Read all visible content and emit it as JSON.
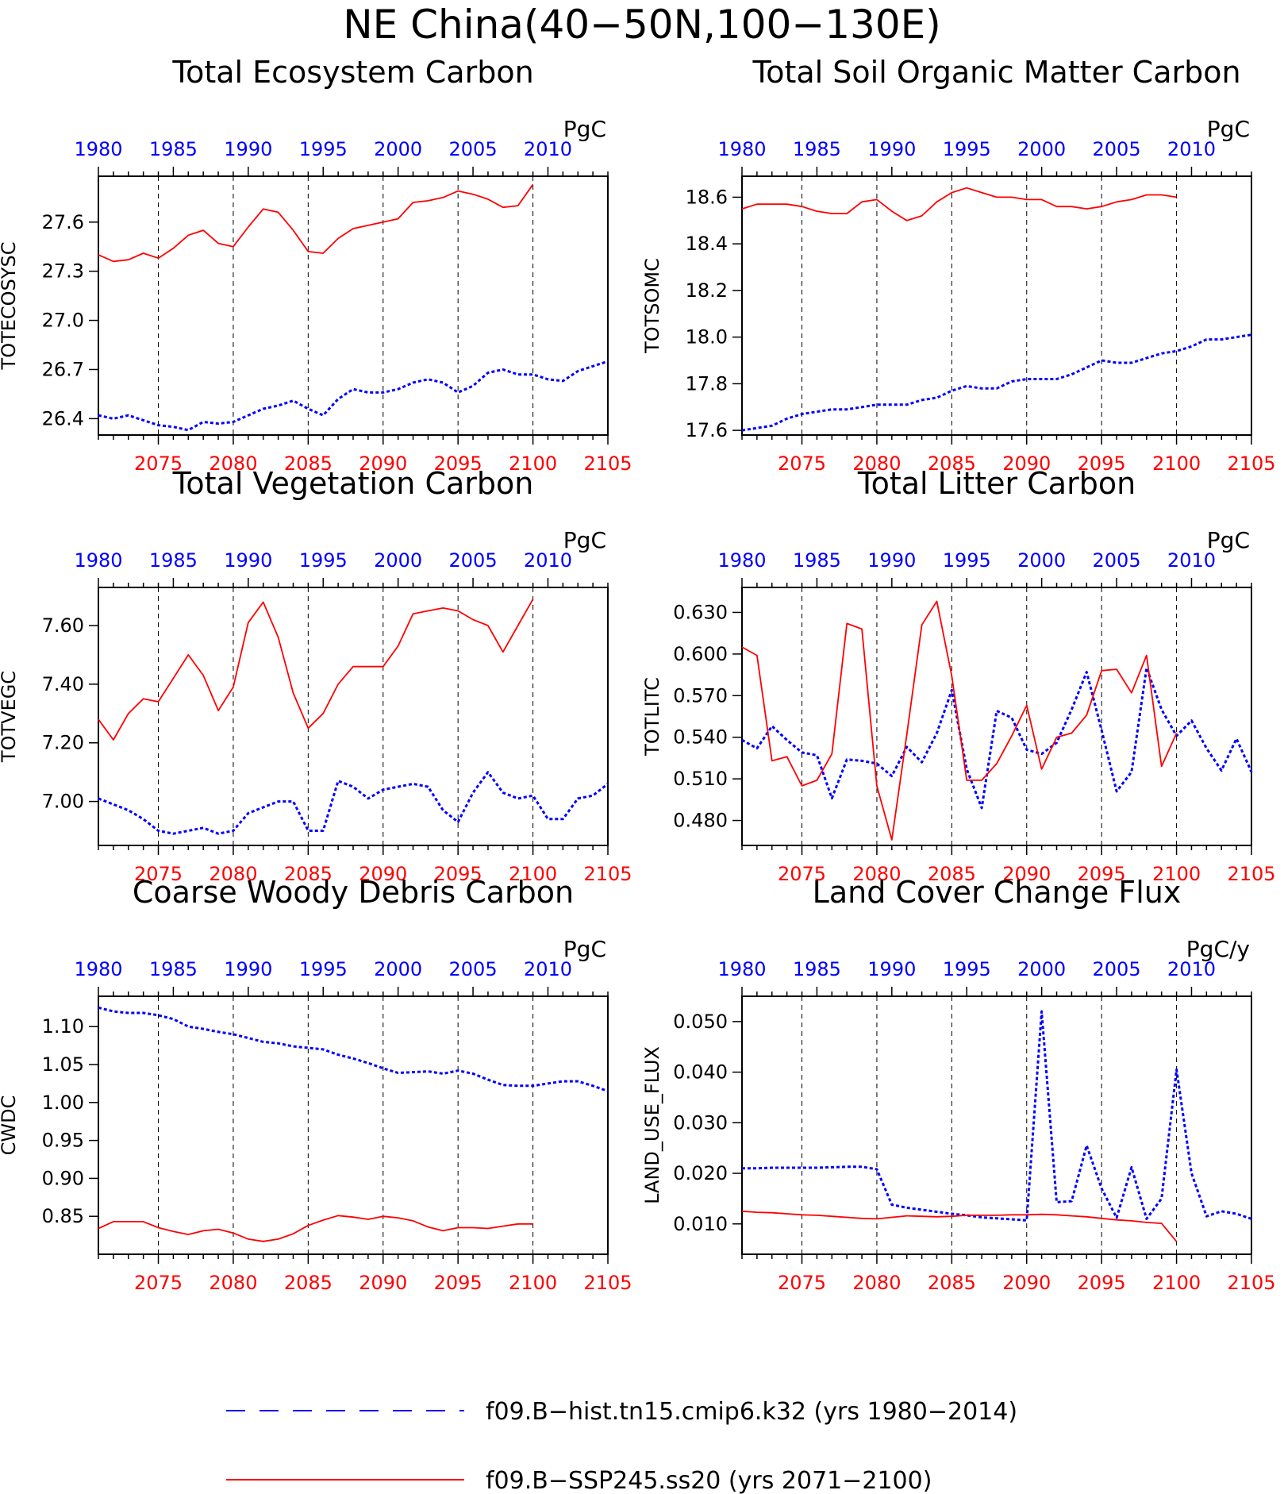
{
  "title": "NE China(40−50N,100−130E)",
  "colors": {
    "hist": "#0000ff",
    "ssp": "#ff0000",
    "axis": "#000000",
    "gridline": "#000000"
  },
  "legend": {
    "entries": [
      {
        "series": "hist",
        "label": "f09.B−hist.tn15.cmip6.k32 (yrs 1980−2014)",
        "style": "dashed"
      },
      {
        "series": "ssp",
        "label": "f09.B−SSP245.ss20 (yrs 2071−2100)",
        "style": "solid"
      }
    ]
  },
  "chart_data": [
    {
      "type": "line",
      "title": "Total Ecosystem Carbon",
      "ylabel": "TOTECOSYSC",
      "units": "PgC",
      "ylim": [
        26.3,
        27.88
      ],
      "yticks": [
        26.4,
        26.7,
        27.0,
        27.3,
        27.6
      ],
      "ytick_labels": [
        "26.4",
        "26.7",
        "27.0",
        "27.3",
        "27.6"
      ],
      "x_bottom": {
        "range": [
          2071,
          2105
        ],
        "ticks": [
          2075,
          2080,
          2085,
          2090,
          2095,
          2100,
          2105
        ]
      },
      "x_top": {
        "range": [
          1980,
          2014
        ],
        "ticks": [
          1980,
          1985,
          1990,
          1995,
          2000,
          2005,
          2010
        ]
      },
      "series": [
        {
          "id": "hist",
          "axis": "top",
          "x_start": 1980,
          "values": [
            26.42,
            26.4,
            26.42,
            26.39,
            26.36,
            26.35,
            26.33,
            26.38,
            26.37,
            26.38,
            26.42,
            26.46,
            26.48,
            26.51,
            26.46,
            26.42,
            26.52,
            26.58,
            26.56,
            26.56,
            26.58,
            26.62,
            26.64,
            26.62,
            26.56,
            26.6,
            26.68,
            26.7,
            26.67,
            26.67,
            26.64,
            26.63,
            26.69,
            26.72,
            26.75
          ]
        },
        {
          "id": "ssp",
          "axis": "bottom",
          "x_start": 2071,
          "values": [
            27.4,
            27.36,
            27.37,
            27.41,
            27.38,
            27.44,
            27.52,
            27.55,
            27.47,
            27.45,
            27.57,
            27.68,
            27.66,
            27.55,
            27.42,
            27.41,
            27.5,
            27.56,
            27.58,
            27.6,
            27.62,
            27.72,
            27.73,
            27.75,
            27.79,
            27.77,
            27.74,
            27.69,
            27.7,
            27.83
          ]
        }
      ]
    },
    {
      "type": "line",
      "title": "Total Soil Organic Matter Carbon",
      "ylabel": "TOTSOMC",
      "units": "PgC",
      "ylim": [
        17.58,
        18.69
      ],
      "yticks": [
        17.6,
        17.8,
        18.0,
        18.2,
        18.4,
        18.6
      ],
      "ytick_labels": [
        "17.6",
        "17.8",
        "18.0",
        "18.2",
        "18.4",
        "18.6"
      ],
      "x_bottom": {
        "range": [
          2071,
          2105
        ],
        "ticks": [
          2075,
          2080,
          2085,
          2090,
          2095,
          2100,
          2105
        ]
      },
      "x_top": {
        "range": [
          1980,
          2014
        ],
        "ticks": [
          1980,
          1985,
          1990,
          1995,
          2000,
          2005,
          2010
        ]
      },
      "series": [
        {
          "id": "hist",
          "axis": "top",
          "x_start": 1980,
          "values": [
            17.6,
            17.61,
            17.62,
            17.65,
            17.67,
            17.68,
            17.69,
            17.69,
            17.7,
            17.71,
            17.71,
            17.71,
            17.73,
            17.74,
            17.77,
            17.79,
            17.78,
            17.78,
            17.81,
            17.82,
            17.82,
            17.82,
            17.84,
            17.87,
            17.9,
            17.89,
            17.89,
            17.91,
            17.93,
            17.94,
            17.96,
            17.99,
            17.99,
            18.0,
            18.01
          ]
        },
        {
          "id": "ssp",
          "axis": "bottom",
          "x_start": 2071,
          "values": [
            18.55,
            18.57,
            18.57,
            18.57,
            18.56,
            18.54,
            18.53,
            18.53,
            18.58,
            18.59,
            18.54,
            18.5,
            18.52,
            18.58,
            18.62,
            18.64,
            18.62,
            18.6,
            18.6,
            18.59,
            18.59,
            18.56,
            18.56,
            18.55,
            18.56,
            18.58,
            18.59,
            18.61,
            18.61,
            18.6
          ]
        }
      ]
    },
    {
      "type": "line",
      "title": "Total Vegetation Carbon",
      "ylabel": "TOTVEGC",
      "units": "PgC",
      "ylim": [
        6.85,
        7.73
      ],
      "yticks": [
        7.0,
        7.2,
        7.4,
        7.6
      ],
      "ytick_labels": [
        "7.00",
        "7.20",
        "7.40",
        "7.60"
      ],
      "x_bottom": {
        "range": [
          2071,
          2105
        ],
        "ticks": [
          2075,
          2080,
          2085,
          2090,
          2095,
          2100,
          2105
        ]
      },
      "x_top": {
        "range": [
          1980,
          2014
        ],
        "ticks": [
          1980,
          1985,
          1990,
          1995,
          2000,
          2005,
          2010
        ]
      },
      "series": [
        {
          "id": "hist",
          "axis": "top",
          "x_start": 1980,
          "values": [
            7.01,
            6.99,
            6.97,
            6.94,
            6.9,
            6.89,
            6.9,
            6.91,
            6.89,
            6.9,
            6.96,
            6.98,
            7.0,
            7.0,
            6.9,
            6.9,
            7.07,
            7.05,
            7.01,
            7.04,
            7.05,
            7.06,
            7.05,
            6.97,
            6.93,
            7.03,
            7.1,
            7.03,
            7.01,
            7.02,
            6.94,
            6.94,
            7.01,
            7.02,
            7.06
          ]
        },
        {
          "id": "ssp",
          "axis": "bottom",
          "x_start": 2071,
          "values": [
            7.28,
            7.21,
            7.3,
            7.35,
            7.34,
            7.42,
            7.5,
            7.43,
            7.31,
            7.39,
            7.61,
            7.68,
            7.56,
            7.37,
            7.25,
            7.3,
            7.4,
            7.46,
            7.46,
            7.46,
            7.53,
            7.64,
            7.65,
            7.66,
            7.65,
            7.62,
            7.6,
            7.51,
            7.6,
            7.69
          ]
        }
      ]
    },
    {
      "type": "line",
      "title": "Total Litter Carbon",
      "ylabel": "TOTLITC",
      "units": "PgC",
      "ylim": [
        0.462,
        0.648
      ],
      "yticks": [
        0.48,
        0.51,
        0.54,
        0.57,
        0.6,
        0.63
      ],
      "ytick_labels": [
        "0.480",
        "0.510",
        "0.540",
        "0.570",
        "0.600",
        "0.630"
      ],
      "x_bottom": {
        "range": [
          2071,
          2105
        ],
        "ticks": [
          2075,
          2080,
          2085,
          2090,
          2095,
          2100,
          2105
        ]
      },
      "x_top": {
        "range": [
          1980,
          2014
        ],
        "ticks": [
          1980,
          1985,
          1990,
          1995,
          2000,
          2005,
          2010
        ]
      },
      "series": [
        {
          "id": "hist",
          "axis": "top",
          "x_start": 1980,
          "values": [
            0.538,
            0.532,
            0.548,
            0.538,
            0.529,
            0.527,
            0.496,
            0.524,
            0.523,
            0.521,
            0.512,
            0.533,
            0.522,
            0.543,
            0.574,
            0.517,
            0.489,
            0.559,
            0.554,
            0.531,
            0.528,
            0.536,
            0.56,
            0.587,
            0.545,
            0.501,
            0.515,
            0.59,
            0.56,
            0.541,
            0.552,
            0.532,
            0.516,
            0.539,
            0.515
          ]
        },
        {
          "id": "ssp",
          "axis": "bottom",
          "x_start": 2071,
          "values": [
            0.605,
            0.599,
            0.523,
            0.526,
            0.505,
            0.509,
            0.528,
            0.622,
            0.618,
            0.505,
            0.466,
            0.542,
            0.621,
            0.638,
            0.584,
            0.509,
            0.509,
            0.521,
            0.541,
            0.563,
            0.517,
            0.54,
            0.543,
            0.556,
            0.588,
            0.589,
            0.572,
            0.599,
            0.519,
            0.543
          ]
        }
      ]
    },
    {
      "type": "line",
      "title": "Coarse Woody Debris Carbon",
      "ylabel": "CWDC",
      "units": "PgC",
      "ylim": [
        0.8,
        1.14
      ],
      "yticks": [
        0.85,
        0.9,
        0.95,
        1.0,
        1.05,
        1.1
      ],
      "ytick_labels": [
        "0.85",
        "0.90",
        "0.95",
        "1.00",
        "1.05",
        "1.10"
      ],
      "x_bottom": {
        "range": [
          2071,
          2105
        ],
        "ticks": [
          2075,
          2080,
          2085,
          2090,
          2095,
          2100,
          2105
        ]
      },
      "x_top": {
        "range": [
          1980,
          2014
        ],
        "ticks": [
          1980,
          1985,
          1990,
          1995,
          2000,
          2005,
          2010
        ]
      },
      "series": [
        {
          "id": "hist",
          "axis": "top",
          "x_start": 1980,
          "values": [
            1.125,
            1.12,
            1.118,
            1.118,
            1.115,
            1.11,
            1.1,
            1.097,
            1.093,
            1.09,
            1.085,
            1.08,
            1.078,
            1.074,
            1.072,
            1.07,
            1.063,
            1.058,
            1.052,
            1.045,
            1.039,
            1.04,
            1.041,
            1.038,
            1.042,
            1.038,
            1.03,
            1.023,
            1.022,
            1.022,
            1.025,
            1.028,
            1.028,
            1.022,
            1.015
          ]
        },
        {
          "id": "ssp",
          "axis": "bottom",
          "x_start": 2071,
          "values": [
            0.834,
            0.843,
            0.843,
            0.843,
            0.835,
            0.83,
            0.826,
            0.831,
            0.833,
            0.828,
            0.82,
            0.817,
            0.82,
            0.827,
            0.838,
            0.845,
            0.851,
            0.849,
            0.846,
            0.85,
            0.848,
            0.844,
            0.836,
            0.831,
            0.835,
            0.835,
            0.834,
            0.837,
            0.84,
            0.84
          ]
        }
      ]
    },
    {
      "type": "line",
      "title": "Land Cover Change Flux",
      "ylabel": "LAND_USE_FLUX",
      "units": "PgC/y",
      "ylim": [
        0.004,
        0.055
      ],
      "yticks": [
        0.01,
        0.02,
        0.03,
        0.04,
        0.05
      ],
      "ytick_labels": [
        "0.010",
        "0.020",
        "0.030",
        "0.040",
        "0.050"
      ],
      "x_bottom": {
        "range": [
          2071,
          2105
        ],
        "ticks": [
          2075,
          2080,
          2085,
          2090,
          2095,
          2100,
          2105
        ]
      },
      "x_top": {
        "range": [
          1980,
          2014
        ],
        "ticks": [
          1980,
          1985,
          1990,
          1995,
          2000,
          2005,
          2010
        ]
      },
      "series": [
        {
          "id": "hist",
          "axis": "top",
          "x_start": 1980,
          "values": [
            0.021,
            0.021,
            0.0211,
            0.0211,
            0.0211,
            0.0211,
            0.0212,
            0.0213,
            0.0213,
            0.0208,
            0.0138,
            0.0132,
            0.0128,
            0.0124,
            0.012,
            0.0117,
            0.0113,
            0.0111,
            0.0109,
            0.0107,
            0.052,
            0.0143,
            0.0145,
            0.0255,
            0.017,
            0.0112,
            0.0212,
            0.011,
            0.015,
            0.0405,
            0.02,
            0.0115,
            0.0125,
            0.012,
            0.011
          ]
        },
        {
          "id": "ssp",
          "axis": "bottom",
          "x_start": 2071,
          "values": [
            0.0125,
            0.0123,
            0.0122,
            0.012,
            0.0118,
            0.0117,
            0.0115,
            0.0113,
            0.0111,
            0.011,
            0.0113,
            0.0116,
            0.0115,
            0.0114,
            0.0115,
            0.0117,
            0.0117,
            0.0117,
            0.0118,
            0.0118,
            0.0119,
            0.0118,
            0.0116,
            0.0114,
            0.0111,
            0.0108,
            0.0106,
            0.0103,
            0.0101,
            0.0065
          ]
        }
      ]
    }
  ]
}
